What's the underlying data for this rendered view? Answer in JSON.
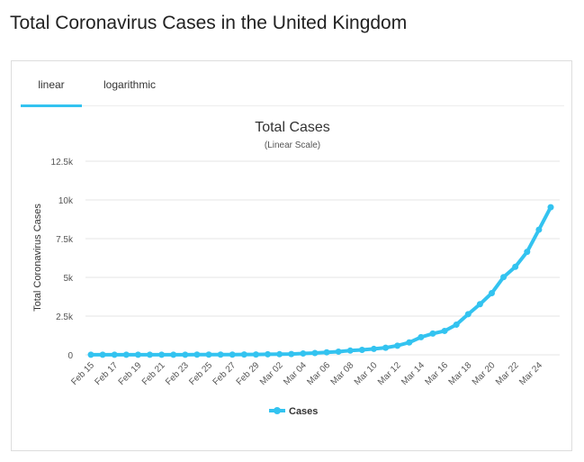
{
  "page_title": "Total Coronavirus Cases in the United Kingdom",
  "tabs": [
    {
      "label": "linear",
      "active": true
    },
    {
      "label": "logarithmic",
      "active": false
    }
  ],
  "colors": {
    "series": "#33c3f0",
    "grid": "#e6e6e6"
  },
  "chart_data": {
    "type": "line",
    "title": "Total Cases",
    "subtitle": "(Linear Scale)",
    "xlabel": "",
    "ylabel": "Total Coronavirus Cases",
    "ylim": [
      0,
      12500
    ],
    "yticks": [
      0,
      2500,
      5000,
      7500,
      10000,
      12500
    ],
    "ytick_labels": [
      "0",
      "2.5k",
      "5k",
      "7.5k",
      "10k",
      "12.5k"
    ],
    "grid": true,
    "legend": "bottom-center",
    "x": [
      "Feb 15",
      "Feb 16",
      "Feb 17",
      "Feb 18",
      "Feb 19",
      "Feb 20",
      "Feb 21",
      "Feb 22",
      "Feb 23",
      "Feb 24",
      "Feb 25",
      "Feb 26",
      "Feb 27",
      "Feb 28",
      "Feb 29",
      "Mar 01",
      "Mar 02",
      "Mar 03",
      "Mar 04",
      "Mar 05",
      "Mar 06",
      "Mar 07",
      "Mar 08",
      "Mar 09",
      "Mar 10",
      "Mar 11",
      "Mar 12",
      "Mar 13",
      "Mar 14",
      "Mar 15",
      "Mar 16",
      "Mar 17",
      "Mar 18",
      "Mar 19",
      "Mar 20",
      "Mar 21",
      "Mar 22",
      "Mar 23",
      "Mar 24",
      "Mar 25"
    ],
    "xtick_labels": [
      "Feb 15",
      "Feb 17",
      "Feb 19",
      "Feb 21",
      "Feb 23",
      "Feb 25",
      "Feb 27",
      "Feb 29",
      "Mar 02",
      "Mar 04",
      "Mar 06",
      "Mar 08",
      "Mar 10",
      "Mar 12",
      "Mar 14",
      "Mar 16",
      "Mar 18",
      "Mar 20",
      "Mar 22",
      "Mar 24"
    ],
    "series": [
      {
        "name": "Cases",
        "values": [
          9,
          9,
          9,
          9,
          9,
          9,
          9,
          9,
          9,
          13,
          13,
          13,
          15,
          20,
          23,
          36,
          40,
          51,
          85,
          115,
          163,
          206,
          273,
          321,
          382,
          456,
          590,
          798,
          1140,
          1372,
          1543,
          1950,
          2626,
          3269,
          3983,
          5018,
          5683,
          6650,
          8077,
          9529
        ]
      }
    ]
  }
}
